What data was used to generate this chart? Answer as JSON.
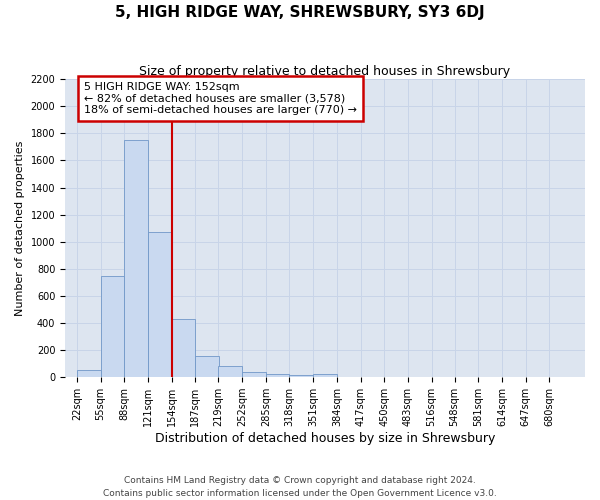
{
  "title": "5, HIGH RIDGE WAY, SHREWSBURY, SY3 6DJ",
  "subtitle": "Size of property relative to detached houses in Shrewsbury",
  "xlabel": "Distribution of detached houses by size in Shrewsbury",
  "ylabel": "Number of detached properties",
  "footer_line1": "Contains HM Land Registry data © Crown copyright and database right 2024.",
  "footer_line2": "Contains public sector information licensed under the Open Government Licence v3.0.",
  "bin_labels": [
    "22sqm",
    "55sqm",
    "88sqm",
    "121sqm",
    "154sqm",
    "187sqm",
    "219sqm",
    "252sqm",
    "285sqm",
    "318sqm",
    "351sqm",
    "384sqm",
    "417sqm",
    "450sqm",
    "483sqm",
    "516sqm",
    "548sqm",
    "581sqm",
    "614sqm",
    "647sqm",
    "680sqm"
  ],
  "bin_edges": [
    22,
    55,
    88,
    121,
    154,
    187,
    219,
    252,
    285,
    318,
    351,
    384,
    417,
    450,
    483,
    516,
    548,
    581,
    614,
    647,
    680
  ],
  "bar_heights": [
    50,
    750,
    1750,
    1075,
    430,
    155,
    80,
    35,
    25,
    15,
    25,
    0,
    0,
    0,
    0,
    0,
    0,
    0,
    0,
    0
  ],
  "bar_color": "#c9d9f0",
  "bar_edge_color": "#7097c8",
  "grid_color": "#c8d4e8",
  "background_color": "#dde5f0",
  "property_line_x": 154,
  "annotation_text_line1": "5 HIGH RIDGE WAY: 152sqm",
  "annotation_text_line2": "← 82% of detached houses are smaller (3,578)",
  "annotation_text_line3": "18% of semi-detached houses are larger (770) →",
  "annotation_box_facecolor": "#ffffff",
  "annotation_box_edgecolor": "#cc0000",
  "red_line_color": "#cc0000",
  "ylim": [
    0,
    2200
  ],
  "yticks": [
    0,
    200,
    400,
    600,
    800,
    1000,
    1200,
    1400,
    1600,
    1800,
    2000,
    2200
  ],
  "title_fontsize": 11,
  "subtitle_fontsize": 9,
  "ylabel_fontsize": 8,
  "xlabel_fontsize": 9,
  "tick_fontsize": 7,
  "annot_fontsize": 8,
  "footer_fontsize": 6.5
}
